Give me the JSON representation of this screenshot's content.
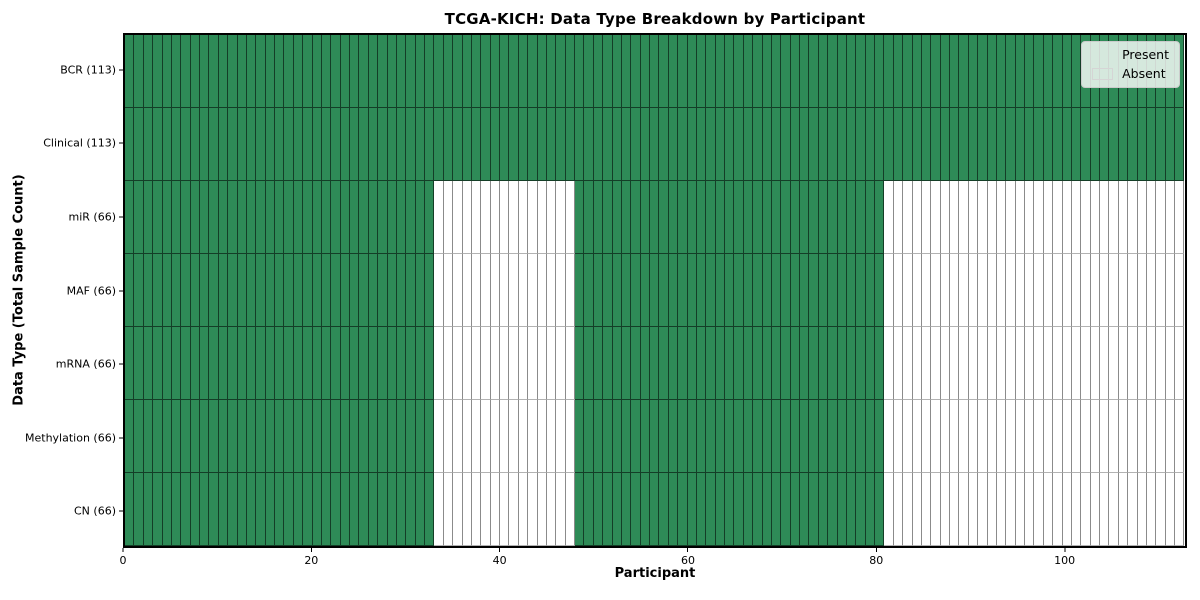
{
  "chart_data": {
    "type": "heatmap",
    "title": "TCGA-KICH: Data Type Breakdown by Participant",
    "xlabel": "Participant",
    "ylabel": "Data Type (Total Sample Count)",
    "n_participants": 113,
    "x_ticks": [
      0,
      20,
      40,
      60,
      80,
      100
    ],
    "x_range": [
      0,
      113
    ],
    "grid": false,
    "rows": [
      {
        "label": "BCR (113)",
        "data_type": "BCR",
        "present_count": 113,
        "present_ranges": [
          [
            0,
            113
          ]
        ]
      },
      {
        "label": "Clinical (113)",
        "data_type": "Clinical",
        "present_count": 113,
        "present_ranges": [
          [
            0,
            113
          ]
        ]
      },
      {
        "label": "miR (66)",
        "data_type": "miR",
        "present_count": 66,
        "present_ranges": [
          [
            0,
            33
          ],
          [
            48,
            81
          ]
        ]
      },
      {
        "label": "MAF (66)",
        "data_type": "MAF",
        "present_count": 66,
        "present_ranges": [
          [
            0,
            33
          ],
          [
            48,
            81
          ]
        ]
      },
      {
        "label": "mRNA (66)",
        "data_type": "mRNA",
        "present_count": 66,
        "present_ranges": [
          [
            0,
            33
          ],
          [
            48,
            81
          ]
        ]
      },
      {
        "label": "Methylation (66)",
        "data_type": "Methylation",
        "present_count": 66,
        "present_ranges": [
          [
            0,
            33
          ],
          [
            48,
            81
          ]
        ]
      },
      {
        "label": "CN (66)",
        "data_type": "CN",
        "present_count": 66,
        "present_ranges": [
          [
            0,
            33
          ],
          [
            48,
            81
          ]
        ]
      }
    ],
    "legend": {
      "position": "upper right",
      "entries": [
        {
          "label": "Present",
          "color": "#2e8b57"
        },
        {
          "label": "Absent",
          "color": "#ffffff"
        }
      ]
    },
    "colors": {
      "present": "#2e8b57",
      "absent": "#ffffff",
      "axis": "#000000"
    }
  }
}
